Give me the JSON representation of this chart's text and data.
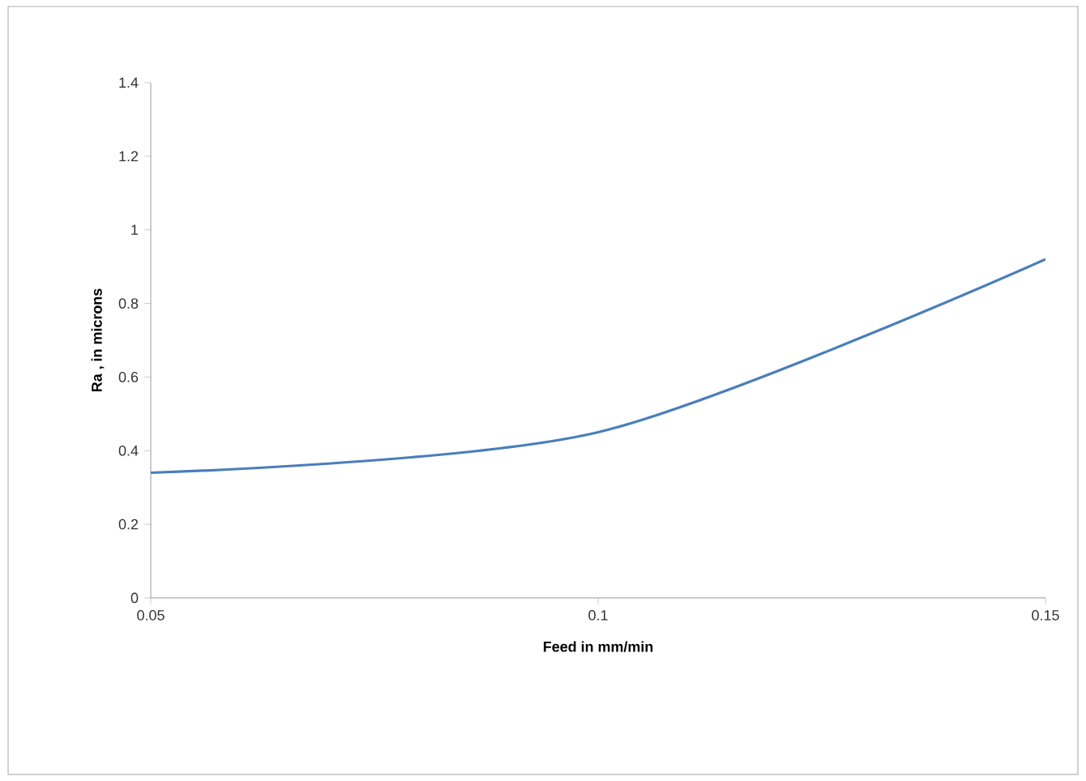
{
  "chart_data": {
    "type": "line",
    "xlabel": "Feed in mm/min",
    "ylabel": "Ra , in microns",
    "x": [
      0.05,
      0.1,
      0.15
    ],
    "series": [
      {
        "color": "#4a7ebb",
        "values": [
          0.34,
          0.45,
          0.92
        ]
      }
    ],
    "xlim": [
      0.05,
      0.15
    ],
    "xticks": [
      0.05,
      0.1,
      0.15
    ],
    "ylim": [
      0,
      1.4
    ],
    "yticks": [
      0,
      0.2,
      0.4,
      0.6,
      0.8,
      1,
      1.2,
      1.4
    ],
    "grid": false,
    "marker": "none",
    "line_style": "solid"
  }
}
